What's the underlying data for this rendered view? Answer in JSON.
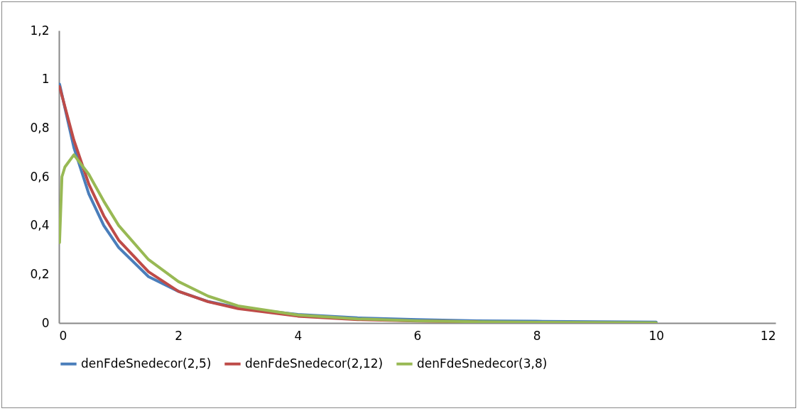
{
  "chart_data": {
    "type": "line",
    "x": [
      0.01,
      0.25,
      0.5,
      0.75,
      1,
      1.5,
      2,
      2.5,
      3,
      4,
      5,
      6,
      7,
      8,
      9,
      10
    ],
    "series": [
      {
        "name": "denFdeSnedecor(2,5)",
        "color": "#4a7ebb",
        "values": [
          0.98,
          0.72,
          0.53,
          0.4,
          0.31,
          0.19,
          0.13,
          0.088,
          0.063,
          0.035,
          0.021,
          0.014,
          0.009,
          0.007,
          0.005,
          0.004
        ]
      },
      {
        "name": "denFdeSnedecor(2,12)",
        "color": "#be4b48",
        "x": [
          0.01,
          0.25,
          0.5,
          0.75,
          1,
          1.5,
          2,
          2.5,
          3,
          4,
          5,
          6,
          7
        ],
        "values": [
          0.97,
          0.75,
          0.57,
          0.44,
          0.34,
          0.21,
          0.13,
          0.087,
          0.059,
          0.028,
          0.014,
          0.008,
          0.005
        ]
      },
      {
        "name": "denFdeSnedecor(3,8)",
        "color": "#98b954",
        "x": [
          0.01,
          0.05,
          0.1,
          0.25,
          0.5,
          0.75,
          1,
          1.5,
          2,
          2.5,
          3,
          4,
          5,
          6,
          7,
          8,
          10
        ],
        "values": [
          0.33,
          0.6,
          0.64,
          0.69,
          0.61,
          0.5,
          0.4,
          0.26,
          0.17,
          0.11,
          0.07,
          0.033,
          0.017,
          0.009,
          0.005,
          0.003,
          0.001
        ]
      }
    ],
    "xlim": [
      0,
      12
    ],
    "xticks": [
      0,
      2,
      4,
      6,
      8,
      10,
      12
    ],
    "ylim": [
      0,
      1.2
    ],
    "yticks": [
      0,
      {
        "value": 0.2,
        "label": "0,2"
      },
      {
        "value": 0.4,
        "label": "0,4"
      },
      {
        "value": 0.6,
        "label": "0,6"
      },
      {
        "value": 0.8,
        "label": "0,8"
      },
      1,
      {
        "value": 1.2,
        "label": "1,2"
      }
    ],
    "legend": "bottom",
    "marker": "none",
    "line_style": "solid"
  }
}
